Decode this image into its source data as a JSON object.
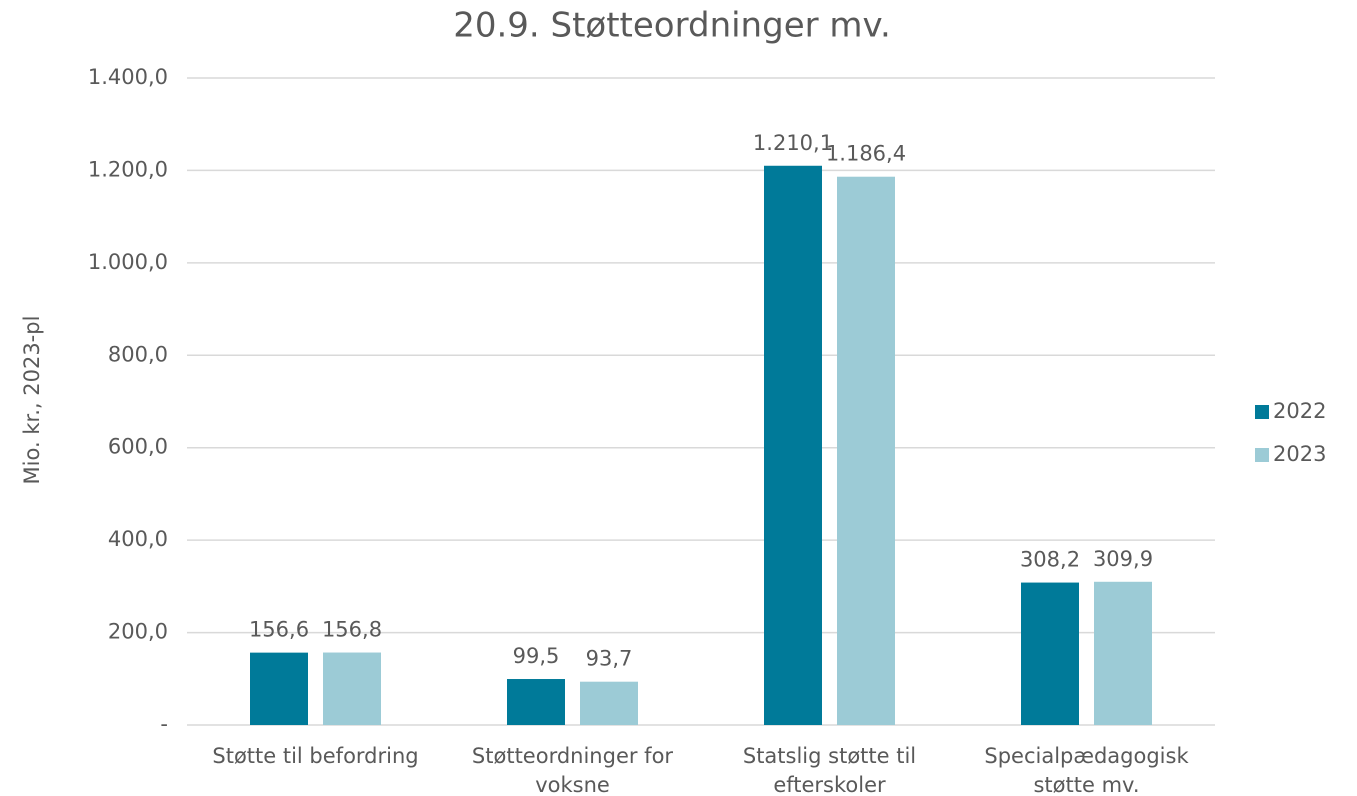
{
  "chart_data": {
    "type": "bar",
    "title": "20.9. Støtteordninger mv.",
    "y_axis_label": "Mio. kr., 2023-pl",
    "categories": [
      "Støtte til befordring",
      "Støtteordninger for voksne",
      "Statslig støtte til efterskoler",
      "Specialpædagogisk støtte mv."
    ],
    "series": [
      {
        "name": "2022",
        "color": "#007a99",
        "values": [
          156.6,
          99.5,
          1210.1,
          308.2
        ],
        "value_labels": [
          "156,6",
          "99,5",
          "1.210,1",
          "308,2"
        ]
      },
      {
        "name": "2023",
        "color": "#9ccbd6",
        "values": [
          156.8,
          93.7,
          1186.4,
          309.9
        ],
        "value_labels": [
          "156,8",
          "93,7",
          "1.186,4",
          "309,9"
        ]
      }
    ],
    "ylim": [
      0,
      1400
    ],
    "yticks": [
      {
        "value": 0,
        "label": "-"
      },
      {
        "value": 200,
        "label": "200,0"
      },
      {
        "value": 400,
        "label": "400,0"
      },
      {
        "value": 600,
        "label": "600,0"
      },
      {
        "value": 800,
        "label": "800,0"
      },
      {
        "value": 1000,
        "label": "1.000,0"
      },
      {
        "value": 1200,
        "label": "1.200,0"
      },
      {
        "value": 1400,
        "label": "1.400,0"
      }
    ],
    "grid": true,
    "legend": "right"
  }
}
